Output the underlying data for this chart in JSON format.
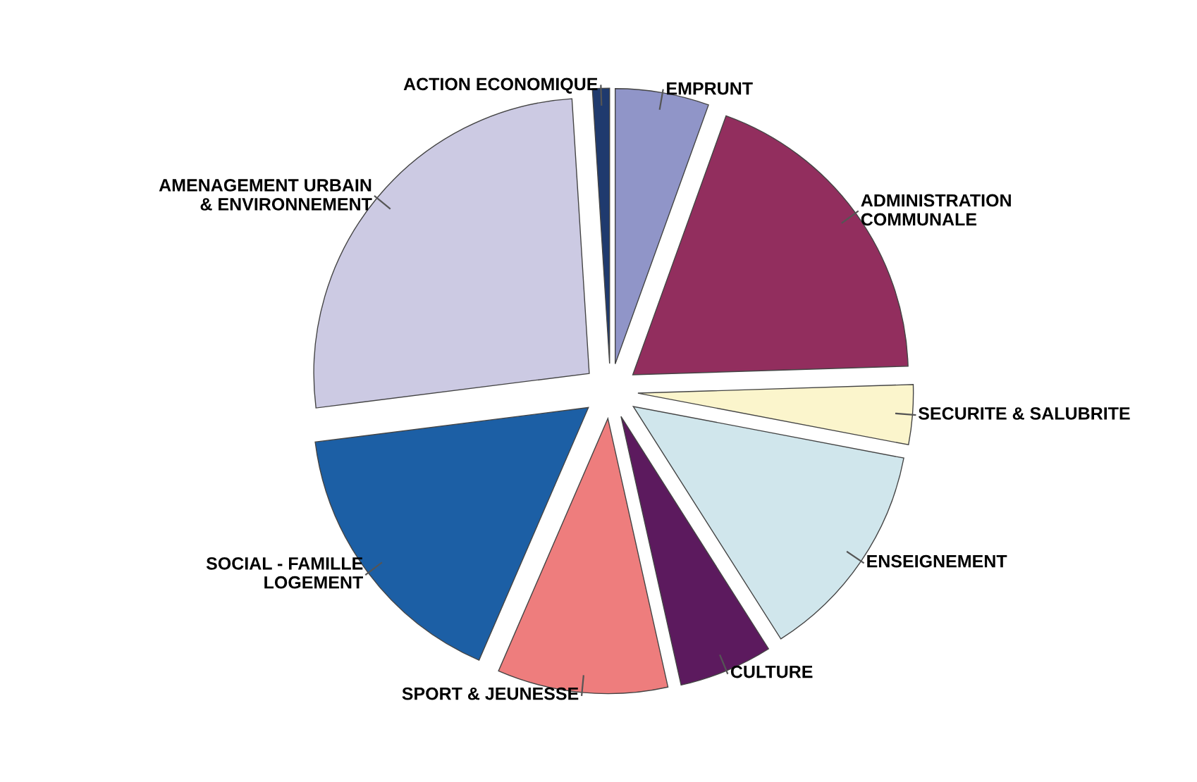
{
  "chart_data": {
    "type": "pie",
    "categories": [
      "EMPRUNT",
      "ADMINISTRATION\nCOMMUNALE",
      "SECURITE & SALUBRITE",
      "ENSEIGNEMENT",
      "CULTURE",
      "SPORT & JEUNESSE",
      "SOCIAL - FAMILLE\nLOGEMENT",
      "AMENAGEMENT URBAIN\n& ENVIRONNEMENT",
      "ACTION ECONOMIQUE"
    ],
    "values": [
      5.5,
      19,
      3.5,
      13,
      5.5,
      10,
      16.5,
      26,
      1
    ],
    "colors": [
      "#9095c8",
      "#922e5e",
      "#fbf5cc",
      "#d0e6ec",
      "#5c1a5e",
      "#ee7d7d",
      "#1c5fa5",
      "#cccae3",
      "#1f3a6e"
    ],
    "legend": false
  }
}
